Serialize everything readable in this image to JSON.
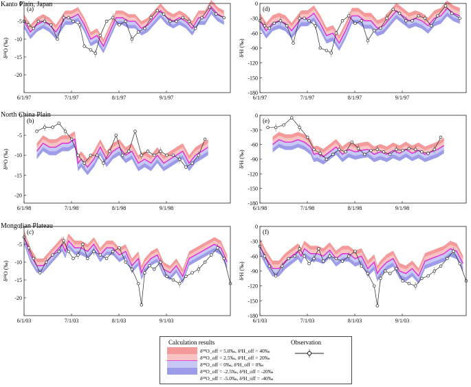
{
  "colors": {
    "s1": "#f49a9a",
    "s2": "#f8c3c3",
    "s3": "#e020d8",
    "s4": "#c8c8f4",
    "s5": "#9c9ce8",
    "obs": "#222222"
  },
  "regions": [
    {
      "name": "Kanto Plain, Japan",
      "xticks": [
        "6/1/97",
        "7/1/97",
        "8/1/97",
        "9/1/97"
      ]
    },
    {
      "name": "North China Plain",
      "xticks": [
        "6/1/98",
        "7/1/98",
        "8/1/98",
        "9/1/98"
      ]
    },
    {
      "name": "Mongolian Plateau",
      "xticks": [
        "6/1/03",
        "7/1/03",
        "8/1/03",
        "9/1/03"
      ]
    }
  ],
  "legend": {
    "title": "Calculation results",
    "obs_title": "Observation",
    "entries": [
      "δ¹⁸O_off = 5.0‰, δ²H_off = 40‰",
      "δ¹⁸O_off = 2.5‰, δ²H_off = 20‰",
      "δ¹⁸O_off = 0‰, δ²H_off = 0‰",
      "δ¹⁸O_off = -2.5‰, δ²H_off = -20‰",
      "δ¹⁸O_off = -5.0‰, δ²H_off = -40‰"
    ]
  },
  "chart_data": [
    {
      "id": "a",
      "label": "(a)",
      "type": "area",
      "region": "Kanto Plain, Japan",
      "ylabel": "δ¹⁸O (‰)",
      "ylim": [
        -25,
        0
      ],
      "yticks": [
        0,
        -5,
        -10,
        -15,
        -20
      ],
      "xlim": [
        0,
        130
      ],
      "xticks": [
        "6/1/97",
        "7/1/97",
        "8/1/97",
        "9/1/97"
      ],
      "band_offsets": [
        5,
        2.5,
        0,
        -2.5,
        -5
      ],
      "band_scale": 0.4,
      "calc": {
        "x": [
          0,
          4,
          8,
          12,
          16,
          20,
          26,
          30,
          34,
          38,
          42,
          46,
          50,
          54,
          58,
          62,
          66,
          70,
          74,
          78,
          82,
          86,
          90,
          94,
          98,
          102,
          106,
          110,
          114,
          118,
          122,
          126
        ],
        "y": [
          -5,
          -8,
          -6,
          -5,
          -6,
          -8,
          -4,
          -4,
          -3,
          -6,
          -10,
          -9,
          -12,
          -8,
          -4,
          -4,
          -5,
          -5,
          -7,
          -6,
          -4,
          -2,
          -4,
          -5,
          -4,
          -5,
          -7,
          -4,
          -4,
          -1,
          -3,
          -4
        ]
      },
      "obs": {
        "x": [
          0,
          3,
          6,
          9,
          13,
          17,
          21,
          25,
          28,
          31,
          35,
          38,
          42,
          45,
          48,
          52,
          56,
          60,
          64,
          68,
          72,
          76,
          80,
          84,
          88,
          92,
          96,
          100,
          104,
          108,
          112,
          117,
          121,
          126
        ],
        "y": [
          -5,
          -6,
          -7,
          -5,
          -5,
          -6,
          -10,
          -4,
          -4,
          -5,
          -6,
          -12,
          -13,
          -14,
          -9,
          -5,
          -4,
          -6,
          -5,
          -10,
          -8,
          -7,
          -4,
          -2,
          -3,
          -5,
          -5,
          -4,
          -5,
          -7,
          -4,
          -1,
          -3,
          -4
        ]
      }
    },
    {
      "id": "d",
      "label": "(d)",
      "type": "area",
      "region": "Kanto Plain, Japan",
      "ylabel": "δ²H (‰)",
      "ylim": [
        -180,
        0
      ],
      "yticks": [
        0,
        -30,
        -60,
        -90,
        -120,
        -150,
        -180
      ],
      "xlim": [
        0,
        130
      ],
      "xticks": [
        "6/1/97",
        "7/1/97",
        "8/1/97",
        "9/1/97"
      ],
      "band_offsets": [
        40,
        20,
        0,
        -20,
        -40
      ],
      "band_scale": 0.4,
      "calc": {
        "x": [
          0,
          4,
          8,
          12,
          16,
          20,
          26,
          30,
          34,
          38,
          42,
          46,
          50,
          54,
          58,
          62,
          66,
          70,
          74,
          78,
          82,
          86,
          90,
          94,
          98,
          102,
          106,
          110,
          114,
          118,
          122,
          126
        ],
        "y": [
          -35,
          -55,
          -40,
          -35,
          -40,
          -55,
          -30,
          -30,
          -20,
          -40,
          -65,
          -60,
          -80,
          -55,
          -25,
          -25,
          -35,
          -35,
          -50,
          -45,
          -30,
          -15,
          -25,
          -35,
          -30,
          -35,
          -45,
          -30,
          -25,
          -10,
          -20,
          -25
        ]
      },
      "obs": {
        "x": [
          0,
          3,
          6,
          9,
          13,
          17,
          21,
          25,
          28,
          31,
          35,
          38,
          42,
          45,
          48,
          52,
          56,
          60,
          64,
          68,
          72,
          76,
          80,
          84,
          88,
          92,
          96,
          100,
          104,
          108,
          112,
          117,
          121,
          126
        ],
        "y": [
          -35,
          -45,
          -50,
          -40,
          -35,
          -45,
          -80,
          -30,
          -30,
          -35,
          -45,
          -90,
          -95,
          -100,
          -60,
          -35,
          -25,
          -40,
          -35,
          -75,
          -55,
          -50,
          -30,
          -12,
          -20,
          -35,
          -35,
          -25,
          -30,
          -45,
          -25,
          -5,
          -20,
          -30
        ]
      }
    },
    {
      "id": "b",
      "label": "(b)",
      "type": "area",
      "region": "North China Plain",
      "ylabel": "δ¹⁸O (‰)",
      "ylim": [
        -22,
        0
      ],
      "yticks": [
        0,
        -5,
        -10,
        -15,
        -20
      ],
      "xlim": [
        0,
        130
      ],
      "xticks": [
        "6/1/98",
        "7/1/98",
        "8/1/98",
        "9/1/98"
      ],
      "band_offsets": [
        5,
        2.5,
        0,
        -2.5,
        -5
      ],
      "band_scale": 0.4,
      "calc": {
        "x": [
          8,
          12,
          16,
          20,
          24,
          28,
          32,
          34,
          36,
          40,
          44,
          48,
          52,
          56,
          60,
          64,
          68,
          72,
          76,
          80,
          84,
          88,
          92,
          96,
          100,
          104,
          108,
          112,
          116
        ],
        "y": [
          -9,
          -7,
          -8,
          -8,
          -7,
          -7,
          -6,
          -12,
          -11,
          -13,
          -11,
          -8,
          -11,
          -9,
          -8,
          -10,
          -9,
          -12,
          -11,
          -12,
          -10,
          -12,
          -11,
          -10,
          -9,
          -12,
          -10,
          -9,
          -8
        ]
      },
      "obs": {
        "x": [
          8,
          13,
          18,
          22,
          26,
          30,
          34,
          38,
          42,
          46,
          50,
          54,
          58,
          62,
          66,
          70,
          74,
          78,
          82,
          86,
          90,
          94,
          98,
          102,
          106,
          110,
          114
        ],
        "y": [
          -4,
          -3,
          -3,
          -2,
          -4,
          -6,
          -10,
          -12,
          -10,
          -10,
          -12,
          -9,
          -5,
          -10,
          -9,
          -4,
          -10,
          -9,
          -10,
          -9,
          -10,
          -10,
          -11,
          -13,
          -12,
          -10,
          -6
        ]
      }
    },
    {
      "id": "e",
      "label": "(e)",
      "type": "area",
      "region": "North China Plain",
      "ylabel": "δ²H (‰)",
      "ylim": [
        -180,
        0
      ],
      "yticks": [
        0,
        -30,
        -60,
        -90,
        -120,
        -150,
        -180
      ],
      "xlim": [
        0,
        130
      ],
      "xticks": [
        "6/1/98",
        "7/1/98",
        "8/1/98",
        "9/1/98"
      ],
      "band_offsets": [
        40,
        20,
        0,
        -20,
        -40
      ],
      "band_scale": 0.4,
      "calc": {
        "x": [
          8,
          12,
          16,
          20,
          24,
          28,
          32,
          34,
          36,
          40,
          44,
          48,
          52,
          56,
          60,
          64,
          68,
          72,
          76,
          80,
          84,
          88,
          92,
          96,
          100,
          104,
          108,
          112,
          116
        ],
        "y": [
          -60,
          -50,
          -55,
          -55,
          -50,
          -55,
          -65,
          -80,
          -78,
          -85,
          -75,
          -65,
          -80,
          -70,
          -75,
          -72,
          -70,
          -80,
          -75,
          -80,
          -72,
          -78,
          -70,
          -78,
          -72,
          -80,
          -75,
          -70,
          -62
        ]
      },
      "obs": {
        "x": [
          5,
          10,
          15,
          20,
          25,
          30,
          34,
          38,
          42,
          46,
          50,
          54,
          58,
          62,
          66,
          70,
          74,
          78,
          82,
          86,
          90,
          94,
          98,
          102,
          106,
          110,
          114
        ],
        "y": [
          -25,
          -25,
          -20,
          -5,
          -25,
          -45,
          -70,
          -78,
          -90,
          -80,
          -70,
          -75,
          -55,
          -68,
          -80,
          -72,
          -70,
          -75,
          -80,
          -70,
          -72,
          -68,
          -70,
          -75,
          -78,
          -70,
          -45
        ]
      }
    },
    {
      "id": "c",
      "label": "(c)",
      "type": "area",
      "region": "Mongolian Plateau",
      "ylabel": "δ¹⁸O (‰)",
      "ylim": [
        -25,
        0
      ],
      "yticks": [
        0,
        -5,
        -10,
        -15,
        -20
      ],
      "xlim": [
        0,
        130
      ],
      "xticks": [
        "6/1/03",
        "7/1/03",
        "8/1/03",
        "9/1/03"
      ],
      "band_offsets": [
        5,
        2.5,
        0,
        -2.5,
        -5
      ],
      "band_scale": 0.4,
      "calc": {
        "x": [
          0,
          4,
          8,
          12,
          16,
          20,
          24,
          26,
          28,
          32,
          36,
          40,
          44,
          48,
          52,
          56,
          60,
          64,
          68,
          72,
          74,
          76,
          80,
          84,
          88,
          92,
          96,
          100,
          104,
          108,
          112,
          116,
          120,
          124,
          128
        ],
        "y": [
          -3,
          -8,
          -11,
          -11,
          -9,
          -7,
          -5,
          -7,
          -4,
          -6,
          -6,
          -7,
          -5,
          -8,
          -6,
          -6,
          -8,
          -7,
          -11,
          -9,
          -13,
          -11,
          -9,
          -8,
          -12,
          -13,
          -11,
          -14,
          -9,
          -8,
          -7,
          -6,
          -5,
          -6,
          -10
        ]
      },
      "obs": {
        "x": [
          0,
          3,
          6,
          10,
          14,
          18,
          22,
          25,
          28,
          31,
          34,
          37,
          40,
          44,
          48,
          52,
          56,
          60,
          64,
          68,
          72,
          74,
          76,
          79,
          82,
          86,
          90,
          94,
          98,
          102,
          106,
          110,
          114,
          118,
          122,
          126,
          130
        ],
        "y": [
          -3,
          -6,
          -9,
          -13,
          -10,
          -8,
          -7,
          -4,
          -7,
          -9,
          -8,
          -5,
          -9,
          -7,
          -8,
          -9,
          -7,
          -6,
          -10,
          -12,
          -16,
          -22,
          -13,
          -11,
          -12,
          -10,
          -14,
          -15,
          -16,
          -14,
          -13,
          -12,
          -10,
          -8,
          -6,
          -9,
          -16
        ]
      }
    },
    {
      "id": "f",
      "label": "(f)",
      "type": "area",
      "region": "Mongolian Plateau",
      "ylabel": "δ²H (‰)",
      "ylim": [
        -180,
        0
      ],
      "yticks": [
        0,
        -30,
        -60,
        -90,
        -120,
        -150,
        -180
      ],
      "xlim": [
        0,
        130
      ],
      "xticks": [
        "6/1/03",
        "7/1/03",
        "8/1/03",
        "9/1/03"
      ],
      "band_offsets": [
        40,
        20,
        0,
        -20,
        -40
      ],
      "band_scale": 0.4,
      "calc": {
        "x": [
          0,
          4,
          8,
          12,
          16,
          20,
          24,
          26,
          28,
          32,
          36,
          40,
          44,
          48,
          52,
          56,
          60,
          64,
          68,
          72,
          74,
          76,
          80,
          84,
          88,
          92,
          96,
          100,
          104,
          108,
          112,
          116,
          120,
          124,
          128
        ],
        "y": [
          -40,
          -65,
          -85,
          -85,
          -70,
          -60,
          -50,
          -60,
          -45,
          -55,
          -55,
          -60,
          -48,
          -65,
          -55,
          -55,
          -65,
          -60,
          -85,
          -72,
          -95,
          -85,
          -72,
          -65,
          -90,
          -95,
          -85,
          -100,
          -70,
          -65,
          -60,
          -55,
          -45,
          -50,
          -75
        ]
      },
      "obs": {
        "x": [
          0,
          3,
          6,
          10,
          14,
          18,
          22,
          25,
          28,
          31,
          34,
          37,
          40,
          44,
          48,
          52,
          56,
          60,
          64,
          68,
          72,
          74,
          76,
          79,
          82,
          86,
          90,
          94,
          98,
          102,
          106,
          110,
          114,
          118,
          122,
          126,
          130
        ],
        "y": [
          -40,
          -60,
          -80,
          -100,
          -80,
          -65,
          -60,
          -45,
          -60,
          -75,
          -65,
          -45,
          -70,
          -60,
          -65,
          -70,
          -60,
          -50,
          -80,
          -95,
          -120,
          -160,
          -105,
          -90,
          -95,
          -85,
          -110,
          -115,
          -120,
          -105,
          -100,
          -90,
          -80,
          -65,
          -50,
          -75,
          -110
        ]
      }
    }
  ]
}
